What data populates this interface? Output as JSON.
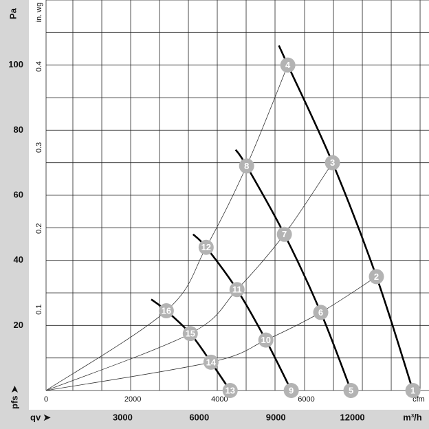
{
  "chart_data": {
    "type": "line",
    "y_axis_label": "Pa",
    "y_axis_symbol": "pfs ➤",
    "y2_axis_label": "in. wg",
    "x_axis_label": "m³/h",
    "x_axis_symbol": "qv ➤",
    "x2_axis_label": "cfm",
    "xlim": [
      0,
      15000
    ],
    "xticks": [
      3000,
      6000,
      9000,
      12000
    ],
    "x2lim": [
      0,
      8830
    ],
    "x2ticks": [
      0,
      2000,
      4000,
      6000
    ],
    "ylim": [
      0,
      120
    ],
    "yticks": [
      20,
      40,
      60,
      80,
      100
    ],
    "y2lim": [
      0,
      0.482
    ],
    "y2ticks": [
      0.1,
      0.2,
      0.3,
      0.4
    ],
    "grid": true,
    "x_gridlines": [
      1050,
      2182,
      3313,
      4444,
      5575,
      6706,
      7837,
      8968,
      10127,
      11258,
      12389,
      13520,
      14651
    ],
    "y_gridlines": [
      0,
      10,
      20,
      30,
      40,
      50,
      60,
      70,
      80,
      90,
      100,
      110,
      120
    ],
    "fan_curves": [
      {
        "color": "#000000",
        "x": [
          9120,
          9470,
          11220,
          12940,
          14370
        ],
        "values": [
          106,
          100,
          70,
          35,
          0
        ]
      },
      {
        "color": "#000000",
        "x": [
          7425,
          7855,
          9335,
          10760,
          11945
        ],
        "values": [
          74,
          69,
          48,
          24,
          0
        ]
      },
      {
        "color": "#000000",
        "x": [
          5760,
          6270,
          7480,
          8610,
          9605
        ],
        "values": [
          48,
          44,
          31,
          15.5,
          0
        ]
      },
      {
        "color": "#000000",
        "x": [
          4120,
          4710,
          5650,
          6460,
          7210
        ],
        "values": [
          28,
          24.5,
          17.5,
          8.7,
          0
        ]
      }
    ],
    "system_curves": [
      {
        "color": "#333333",
        "x": [
          0,
          6460,
          8610,
          10760,
          12940
        ],
        "values": [
          0,
          8.7,
          15.5,
          24,
          35
        ]
      },
      {
        "color": "#333333",
        "x": [
          0,
          5650,
          7480,
          9335,
          11220
        ],
        "values": [
          0,
          17.5,
          31,
          48,
          70
        ]
      },
      {
        "color": "#333333",
        "x": [
          0,
          4710,
          6270,
          7855,
          9470
        ],
        "values": [
          0,
          24.5,
          44,
          69,
          100
        ]
      }
    ],
    "point_color": "#b3b3b3",
    "points": [
      {
        "label": "1",
        "x": 14370,
        "y": 0
      },
      {
        "label": "2",
        "x": 12940,
        "y": 35
      },
      {
        "label": "3",
        "x": 11220,
        "y": 70
      },
      {
        "label": "4",
        "x": 9470,
        "y": 100
      },
      {
        "label": "5",
        "x": 11945,
        "y": 0
      },
      {
        "label": "6",
        "x": 10760,
        "y": 24
      },
      {
        "label": "7",
        "x": 9335,
        "y": 48
      },
      {
        "label": "8",
        "x": 7855,
        "y": 69
      },
      {
        "label": "9",
        "x": 9605,
        "y": 0
      },
      {
        "label": "10",
        "x": 8610,
        "y": 15.5
      },
      {
        "label": "11",
        "x": 7480,
        "y": 31
      },
      {
        "label": "12",
        "x": 6270,
        "y": 44
      },
      {
        "label": "13",
        "x": 7210,
        "y": 0
      },
      {
        "label": "14",
        "x": 6460,
        "y": 8.7
      },
      {
        "label": "15",
        "x": 5650,
        "y": 17.5
      },
      {
        "label": "16",
        "x": 4710,
        "y": 24.5
      }
    ]
  }
}
